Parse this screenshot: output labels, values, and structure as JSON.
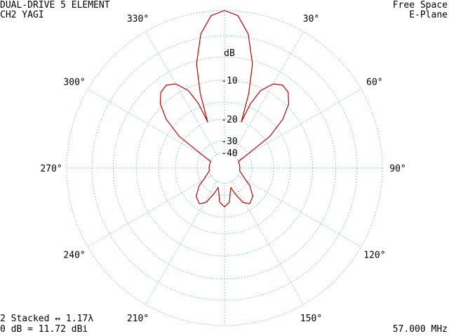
{
  "header": {
    "title_line1": "DUAL-DRIVE 5 ELEMENT",
    "title_line2": "CH2 YAGI",
    "env_line1": "Free Space",
    "env_line2": "E-Plane"
  },
  "footer": {
    "stack_line": "2 Stacked ↔ 1.17λ",
    "gain_line": "0 dB = 11.72 dBi",
    "frequency": "57.000 MHz"
  },
  "colors": {
    "grid": "#3aa0b0",
    "pattern": "#c00000",
    "text": "#000000"
  },
  "chart_data": {
    "type": "polar",
    "angle_unit": "degrees",
    "angle_zero": "top",
    "angle_direction": "clockwise",
    "radial_scale": "dB",
    "radial_range": [
      -40,
      0
    ],
    "angle_labels": [
      {
        "angle": 30,
        "text": "30°"
      },
      {
        "angle": 60,
        "text": "60°"
      },
      {
        "angle": 90,
        "text": "90°"
      },
      {
        "angle": 120,
        "text": "120°"
      },
      {
        "angle": 150,
        "text": "150°"
      },
      {
        "angle": 210,
        "text": "210°"
      },
      {
        "angle": 240,
        "text": "240°"
      },
      {
        "angle": 270,
        "text": "270°"
      },
      {
        "angle": 300,
        "text": "300°"
      },
      {
        "angle": 330,
        "text": "330°"
      }
    ],
    "radial_labels": [
      {
        "db": 0,
        "text": "dB"
      },
      {
        "db": -10,
        "text": "-10"
      },
      {
        "db": -20,
        "text": "-20"
      },
      {
        "db": -30,
        "text": "-30"
      },
      {
        "db": -40,
        "text": "-40"
      }
    ],
    "grid": true,
    "series": [
      {
        "points": [
          [
            0,
            0.0
          ],
          [
            5,
            -0.5
          ],
          [
            10,
            -2.5
          ],
          [
            15,
            -6.5
          ],
          [
            18,
            -12.0
          ],
          [
            20,
            -20.0
          ],
          [
            22,
            -14.0
          ],
          [
            25,
            -10.5
          ],
          [
            30,
            -8.3
          ],
          [
            35,
            -7.6
          ],
          [
            40,
            -8.0
          ],
          [
            45,
            -9.5
          ],
          [
            50,
            -12.5
          ],
          [
            55,
            -18.0
          ],
          [
            60,
            -32.0
          ],
          [
            65,
            -40.0
          ],
          [
            80,
            -40.0
          ],
          [
            90,
            -40.0
          ],
          [
            100,
            -40.0
          ],
          [
            118,
            -33.0
          ],
          [
            125,
            -28.0
          ],
          [
            135,
            -23.5
          ],
          [
            145,
            -22.0
          ],
          [
            152,
            -24.0
          ],
          [
            158,
            -30.0
          ],
          [
            162,
            -35.0
          ],
          [
            165,
            -33.0
          ],
          [
            172,
            -26.0
          ],
          [
            180,
            -24.0
          ],
          [
            188,
            -26.0
          ],
          [
            195,
            -33.0
          ],
          [
            198,
            -35.0
          ],
          [
            202,
            -30.0
          ],
          [
            208,
            -24.0
          ],
          [
            215,
            -22.0
          ],
          [
            225,
            -23.5
          ],
          [
            235,
            -28.0
          ],
          [
            242,
            -33.0
          ],
          [
            260,
            -40.0
          ],
          [
            270,
            -40.0
          ],
          [
            280,
            -40.0
          ],
          [
            295,
            -40.0
          ],
          [
            300,
            -32.0
          ],
          [
            305,
            -18.0
          ],
          [
            310,
            -12.5
          ],
          [
            315,
            -9.5
          ],
          [
            320,
            -8.0
          ],
          [
            325,
            -7.6
          ],
          [
            330,
            -8.3
          ],
          [
            335,
            -10.5
          ],
          [
            338,
            -14.0
          ],
          [
            340,
            -20.0
          ],
          [
            342,
            -12.0
          ],
          [
            345,
            -6.5
          ],
          [
            350,
            -2.5
          ],
          [
            355,
            -0.5
          ],
          [
            360,
            0.0
          ]
        ]
      }
    ]
  }
}
